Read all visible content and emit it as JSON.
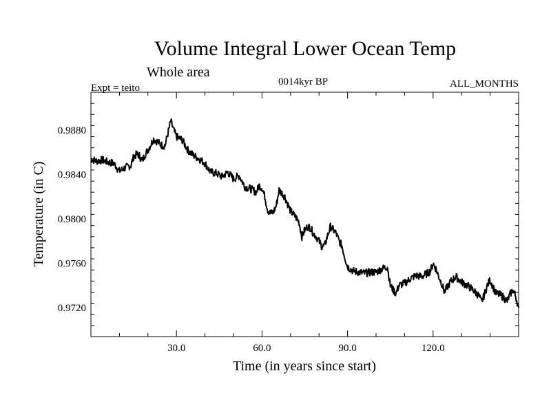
{
  "chart_data": {
    "type": "line",
    "title": "Volume Integral Lower Ocean Temp",
    "subtitle": "Whole area",
    "annotations": {
      "left": "Expt = teito",
      "center": "0014kyr BP",
      "right": "ALL_MONTHS"
    },
    "xlabel": "Time (in years since start)",
    "ylabel": "Temperature (in C)",
    "xlim": [
      0,
      150
    ],
    "ylim": [
      0.9694,
      0.9914
    ],
    "x_ticks": [
      30,
      60,
      90,
      120
    ],
    "x_tick_labels": [
      "30.0",
      "60.0",
      "90.0",
      "120.0"
    ],
    "x_minor_step": 10,
    "y_ticks": [
      0.972,
      0.976,
      0.98,
      0.984,
      0.988
    ],
    "y_tick_labels": [
      "0.9720",
      "0.9760",
      "0.9800",
      "0.9840",
      "0.9880"
    ],
    "y_minor_step": 0.001,
    "grid": false,
    "series": [
      {
        "name": "Volume Integral Lower Ocean Temp",
        "color": "#000000",
        "x": [
          0,
          2,
          4,
          6,
          8,
          10,
          12,
          14,
          15,
          16,
          17,
          18,
          19,
          20,
          22,
          24,
          25,
          26,
          27,
          28,
          29,
          30,
          32,
          34,
          36,
          38,
          40,
          42,
          44,
          46,
          48,
          50,
          52,
          54,
          56,
          58,
          59,
          60,
          61,
          62,
          63,
          64,
          65,
          66,
          68,
          70,
          71,
          72,
          73,
          74,
          75,
          76,
          77,
          78,
          79,
          80,
          81,
          82,
          83,
          84,
          86,
          87,
          88,
          89,
          90,
          92,
          94,
          96,
          98,
          100,
          102,
          104,
          105,
          106,
          107,
          108,
          110,
          112,
          114,
          116,
          118,
          119,
          120,
          121,
          122,
          123,
          124,
          126,
          128,
          130,
          132,
          134,
          136,
          137,
          138,
          139,
          140,
          142,
          144,
          146,
          147,
          148,
          149,
          150
        ],
        "values": [
          0.9854,
          0.9852,
          0.9853,
          0.9851,
          0.985,
          0.9843,
          0.9846,
          0.9848,
          0.9856,
          0.9858,
          0.9857,
          0.9852,
          0.9858,
          0.9862,
          0.9872,
          0.9868,
          0.9866,
          0.9866,
          0.9877,
          0.9888,
          0.988,
          0.9874,
          0.9871,
          0.9862,
          0.9857,
          0.9854,
          0.985,
          0.9842,
          0.9841,
          0.9838,
          0.9842,
          0.9836,
          0.9839,
          0.9829,
          0.9827,
          0.9824,
          0.983,
          0.9828,
          0.982,
          0.9808,
          0.9805,
          0.9806,
          0.9812,
          0.9826,
          0.982,
          0.9807,
          0.9804,
          0.9801,
          0.9797,
          0.9784,
          0.979,
          0.9793,
          0.9792,
          0.9787,
          0.9784,
          0.978,
          0.9775,
          0.9776,
          0.9785,
          0.9793,
          0.9787,
          0.978,
          0.9776,
          0.9766,
          0.9757,
          0.9753,
          0.9752,
          0.9751,
          0.9752,
          0.9752,
          0.9755,
          0.9757,
          0.974,
          0.9736,
          0.9733,
          0.974,
          0.9742,
          0.9746,
          0.9749,
          0.9748,
          0.9751,
          0.9753,
          0.976,
          0.9755,
          0.9748,
          0.9742,
          0.9734,
          0.9743,
          0.9748,
          0.9743,
          0.974,
          0.9736,
          0.9731,
          0.9725,
          0.9732,
          0.974,
          0.9745,
          0.9733,
          0.9731,
          0.9726,
          0.9732,
          0.9736,
          0.973,
          0.972
        ]
      }
    ]
  }
}
